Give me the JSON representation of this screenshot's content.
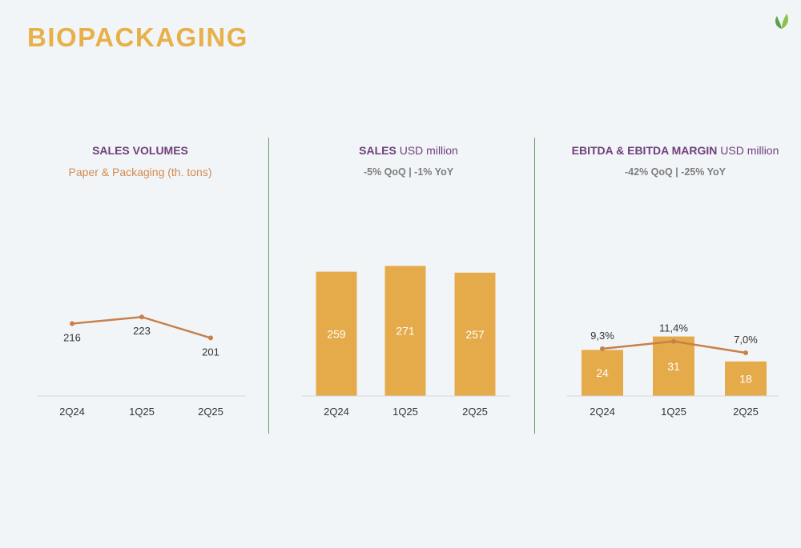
{
  "page": {
    "title": "BIOPACKAGING"
  },
  "logo": {
    "icon": "leaf-logo-icon",
    "colors": [
      "#5aa04a",
      "#8bc34a"
    ]
  },
  "colors": {
    "bar": "#e5aa4a",
    "line": "#c8804a",
    "title": "#e8b048",
    "heading": "#6e3f7a",
    "axis": "#d3d8de"
  },
  "panels": [
    {
      "title": "SALES VOLUMES",
      "unit": "",
      "subtitle": "Paper & Packaging (th. tons)",
      "change": ""
    },
    {
      "title": "SALES",
      "unit": "USD million",
      "subtitle": "",
      "change": "-5% QoQ | -1% YoY"
    },
    {
      "title": "EBITDA & EBITDA MARGIN",
      "unit": "USD million",
      "subtitle": "",
      "change": "-42% QoQ | -25% YoY"
    }
  ],
  "chart_data": [
    {
      "type": "line",
      "title": "SALES VOLUMES",
      "subtitle": "Paper & Packaging (th. tons)",
      "categories": [
        "2Q24",
        "1Q25",
        "2Q25"
      ],
      "values": [
        216,
        223,
        201
      ],
      "data_labels": [
        "216",
        "223",
        "201"
      ],
      "ylim": [
        0,
        320
      ],
      "grid": false,
      "legend": "none"
    },
    {
      "type": "bar",
      "title": "SALES",
      "unit": "USD million",
      "annotation": "-5% QoQ | -1% YoY",
      "categories": [
        "2Q24",
        "1Q25",
        "2Q25"
      ],
      "values": [
        259,
        271,
        257
      ],
      "data_labels": [
        "259",
        "271",
        "257"
      ],
      "ylim": [
        0,
        300
      ],
      "grid": false,
      "legend": "none"
    },
    {
      "type": "bar",
      "title": "EBITDA & EBITDA MARGIN",
      "unit": "USD million",
      "annotation": "-42% QoQ | -25% YoY",
      "categories": [
        "2Q24",
        "1Q25",
        "2Q25"
      ],
      "series": [
        {
          "kind": "bar",
          "values": [
            24,
            31,
            18
          ],
          "labels": [
            "24",
            "31",
            "18"
          ]
        },
        {
          "kind": "line",
          "values": [
            9.3,
            11.4,
            7.0
          ],
          "labels": [
            "9,3%",
            "11,4%",
            "7,0%"
          ]
        }
      ],
      "grid": false,
      "legend": "none"
    }
  ]
}
